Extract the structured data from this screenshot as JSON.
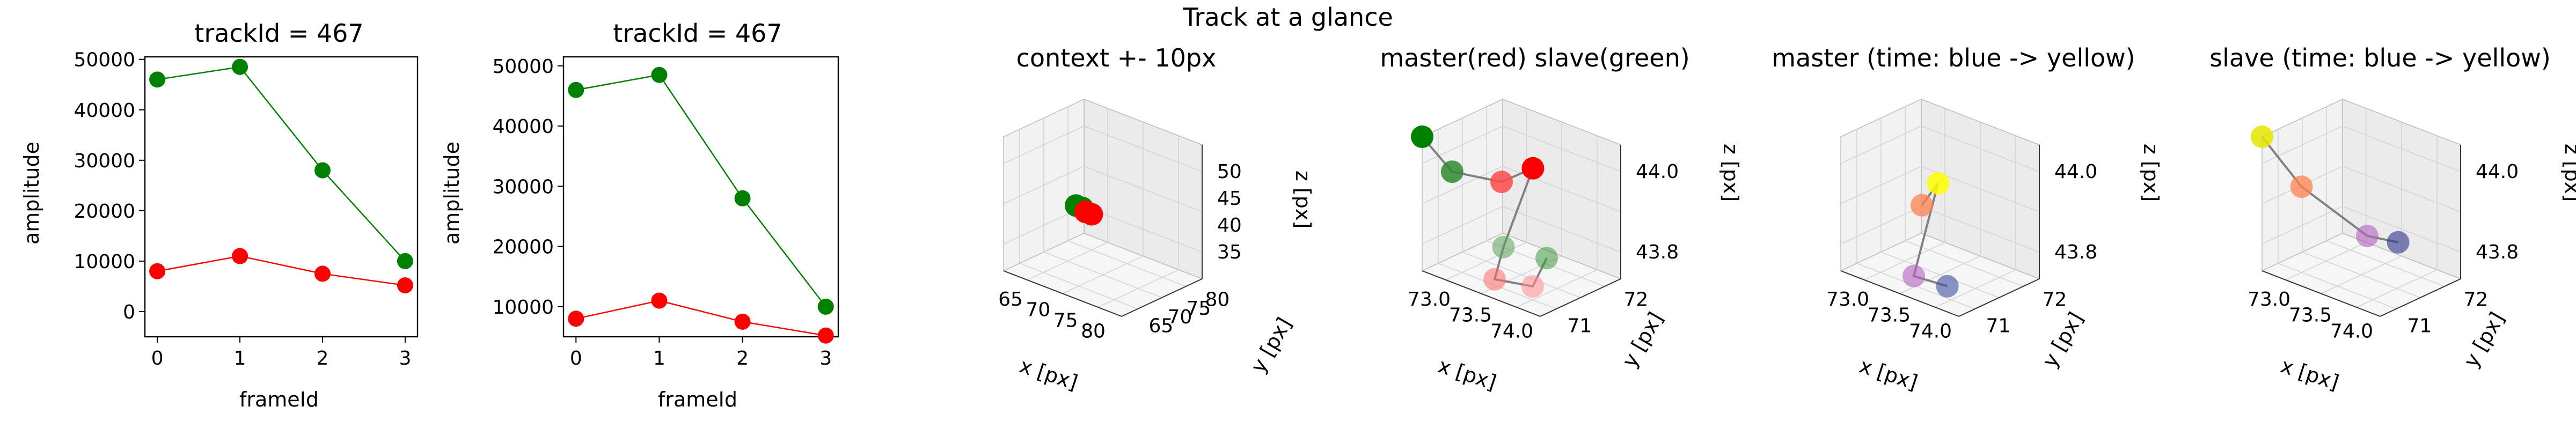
{
  "figure": {
    "suptitle": "Track at a glance"
  },
  "chart_data": [
    {
      "type": "line",
      "title": "trackId = 467",
      "xlabel": "frameId",
      "ylabel": "amplitude",
      "x": [
        0,
        1,
        2,
        3
      ],
      "xticks": [
        "0",
        "1",
        "2",
        "3"
      ],
      "yticks": [
        "0",
        "10000",
        "20000",
        "30000",
        "40000",
        "50000"
      ],
      "xlim": [
        -0.15,
        3.15
      ],
      "ylim": [
        -5000,
        50500
      ],
      "series": [
        {
          "values": [
            46000,
            48500,
            28000,
            10000
          ],
          "color": "#008000"
        },
        {
          "values": [
            8000,
            11000,
            7500,
            5200
          ],
          "color": "#ff0000"
        }
      ]
    },
    {
      "type": "line",
      "title": "trackId = 467",
      "xlabel": "frameId",
      "ylabel": "amplitude",
      "x": [
        0,
        1,
        2,
        3
      ],
      "xticks": [
        "0",
        "1",
        "2",
        "3"
      ],
      "yticks": [
        "10000",
        "20000",
        "30000",
        "40000",
        "50000"
      ],
      "xlim": [
        -0.15,
        3.15
      ],
      "ylim": [
        5000,
        51500
      ],
      "series": [
        {
          "values": [
            46000,
            48500,
            28000,
            10000
          ],
          "color": "#008000"
        },
        {
          "values": [
            8000,
            11000,
            7500,
            5200
          ],
          "color": "#ff0000"
        }
      ]
    },
    {
      "type": "scatter",
      "projection": "3d",
      "title": "context +- 10px",
      "xlabel": "x [px]",
      "ylabel": "y [px]",
      "zlabel": "z [px]",
      "xticks": [
        "65",
        "70",
        "75",
        "80"
      ],
      "yticks": [
        "65",
        "70",
        "75",
        "80"
      ],
      "zticks": [
        "35",
        "40",
        "45",
        "50"
      ],
      "points": [
        {
          "x": 72.5,
          "y": 72,
          "z": 43.8,
          "color": "#008000"
        },
        {
          "x": 73.2,
          "y": 71.5,
          "z": 43.9,
          "color": "#008000"
        },
        {
          "x": 73.6,
          "y": 71.2,
          "z": 43.8,
          "color": "#ff0000"
        },
        {
          "x": 74.0,
          "y": 71.8,
          "z": 43.7,
          "color": "#ff0000"
        }
      ]
    },
    {
      "type": "scatter",
      "projection": "3d",
      "title": "master(red) slave(green)",
      "xlabel": "x [px]",
      "ylabel": "y [px]",
      "zlabel": "z [px]",
      "xticks": [
        "73.0",
        "73.5",
        "74.0"
      ],
      "yticks": [
        "71",
        "72"
      ],
      "zticks": [
        "43.8",
        "44.0"
      ]
    },
    {
      "type": "scatter",
      "projection": "3d",
      "title": "master (time: blue -> yellow)",
      "xlabel": "x [px]",
      "ylabel": "y [px]",
      "zlabel": "z [px]",
      "xticks": [
        "73.0",
        "73.5",
        "74.0"
      ],
      "yticks": [
        "71",
        "72"
      ],
      "zticks": [
        "43.8",
        "44.0"
      ]
    },
    {
      "type": "scatter",
      "projection": "3d",
      "title": "slave (time: blue -> yellow)",
      "xlabel": "x [px]",
      "ylabel": "y [px]",
      "zlabel": "z [px]",
      "xticks": [
        "73.0",
        "73.5",
        "74.0"
      ],
      "yticks": [
        "71",
        "72"
      ],
      "zticks": [
        "43.8",
        "44.0"
      ]
    }
  ]
}
